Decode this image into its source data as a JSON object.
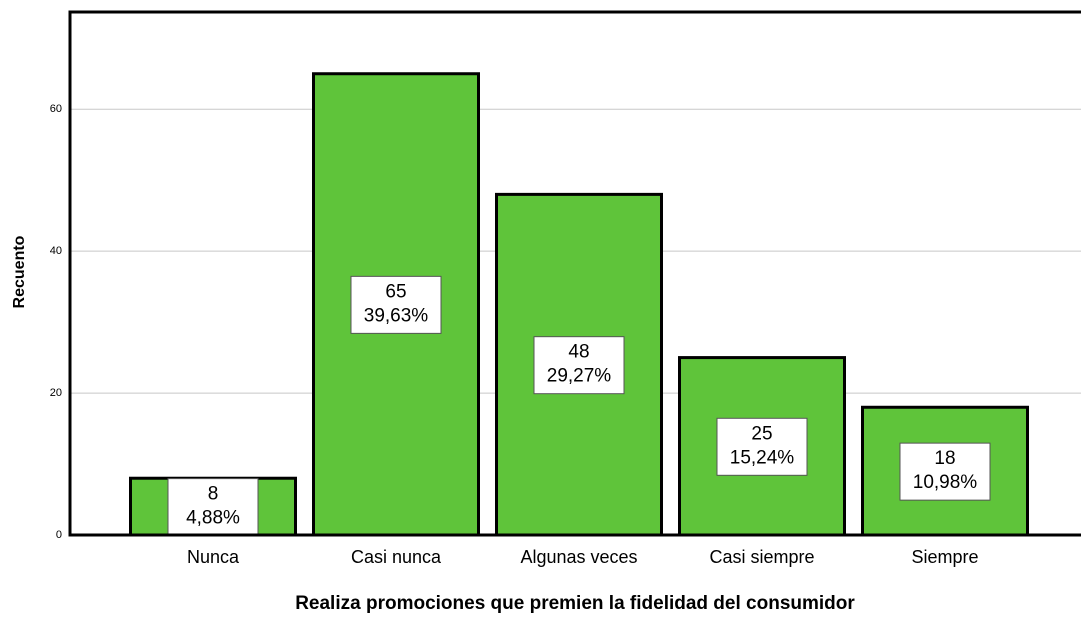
{
  "chart_data": {
    "type": "bar",
    "x_label": "Realiza promociones que premien la fidelidad del consumidor",
    "y_label": "Recuento",
    "categories": [
      "Nunca",
      "Casi nunca",
      "Algunas veces",
      "Casi siempre",
      "Siempre"
    ],
    "values": [
      8,
      65,
      48,
      25,
      18
    ],
    "percentage_labels": [
      "4,88%",
      "39,63%",
      "29,27%",
      "15,24%",
      "10,98%"
    ],
    "color": "#5fc43a",
    "ylim": [
      0,
      73.7
    ],
    "yticks": [
      0,
      20,
      40,
      60
    ],
    "grid": true
  }
}
